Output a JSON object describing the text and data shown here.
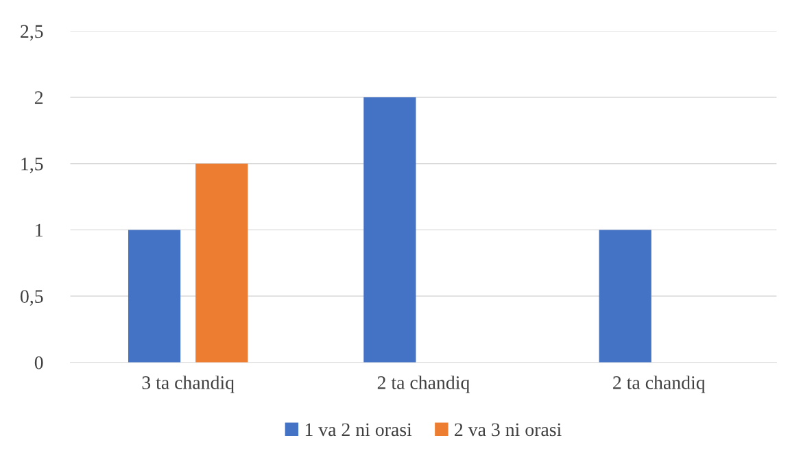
{
  "chart_data": {
    "type": "bar",
    "categories": [
      "3 ta chandiq",
      "2 ta chandiq",
      "2 ta chandiq"
    ],
    "series": [
      {
        "name": "1 va 2 ni orasi",
        "color": "#4472c4",
        "values": [
          1,
          2,
          1
        ]
      },
      {
        "name": "2 va 3 ni orasi",
        "color": "#ed7d31",
        "values": [
          1.5,
          null,
          null
        ]
      }
    ],
    "ylim": [
      0,
      2.5
    ],
    "yticks": [
      0,
      {
        "value": 0.5,
        "label": "0,5"
      },
      1,
      {
        "value": 1.5,
        "label": "1,5"
      },
      2,
      {
        "value": 2.5,
        "label": "2,5"
      }
    ],
    "grid": "y",
    "legend": "bottom"
  }
}
